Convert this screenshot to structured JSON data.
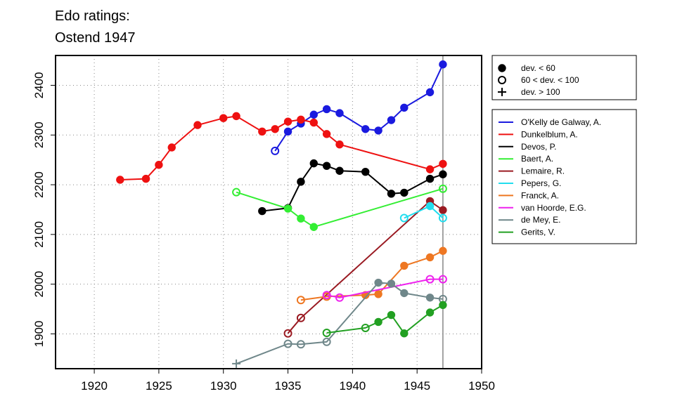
{
  "chart_data": {
    "type": "line",
    "title_lines": [
      "Edo ratings:",
      "Ostend 1947"
    ],
    "xlabel": "",
    "ylabel": "",
    "xlim": [
      1917,
      1950
    ],
    "ylim": [
      1830,
      2460
    ],
    "x_ticks": [
      1920,
      1925,
      1930,
      1935,
      1940,
      1945,
      1950
    ],
    "y_ticks": [
      1900,
      2000,
      2100,
      2200,
      2300,
      2400
    ],
    "grid": "dotted",
    "vertical_marker_x": 1947,
    "marker_legend": [
      {
        "symbol": "filled-circle",
        "label": "dev. < 60"
      },
      {
        "symbol": "open-circle",
        "label": "60 < dev. < 100"
      },
      {
        "symbol": "plus",
        "label": "dev. > 100"
      }
    ],
    "series": [
      {
        "name": "O'Kelly de Galway, A.",
        "color": "#1a1adf",
        "points": [
          {
            "x": 1934,
            "y": 2268,
            "m": "o"
          },
          {
            "x": 1935,
            "y": 2307,
            "m": "f"
          },
          {
            "x": 1936,
            "y": 2323,
            "m": "f"
          },
          {
            "x": 1937,
            "y": 2341,
            "m": "f"
          },
          {
            "x": 1938,
            "y": 2352,
            "m": "f"
          },
          {
            "x": 1939,
            "y": 2344,
            "m": "f"
          },
          {
            "x": 1941,
            "y": 2312,
            "m": "f"
          },
          {
            "x": 1942,
            "y": 2309,
            "m": "f"
          },
          {
            "x": 1943,
            "y": 2330,
            "m": "f"
          },
          {
            "x": 1944,
            "y": 2355,
            "m": "f"
          },
          {
            "x": 1946,
            "y": 2386,
            "m": "f"
          },
          {
            "x": 1947,
            "y": 2442,
            "m": "f"
          }
        ]
      },
      {
        "name": "Dunkelblum, A.",
        "color": "#ee1111",
        "points": [
          {
            "x": 1922,
            "y": 2210,
            "m": "f"
          },
          {
            "x": 1924,
            "y": 2212,
            "m": "f"
          },
          {
            "x": 1925,
            "y": 2240,
            "m": "f"
          },
          {
            "x": 1926,
            "y": 2275,
            "m": "f"
          },
          {
            "x": 1928,
            "y": 2320,
            "m": "f"
          },
          {
            "x": 1930,
            "y": 2334,
            "m": "f"
          },
          {
            "x": 1931,
            "y": 2338,
            "m": "f"
          },
          {
            "x": 1933,
            "y": 2307,
            "m": "f"
          },
          {
            "x": 1934,
            "y": 2312,
            "m": "f"
          },
          {
            "x": 1935,
            "y": 2327,
            "m": "f"
          },
          {
            "x": 1936,
            "y": 2331,
            "m": "f"
          },
          {
            "x": 1937,
            "y": 2325,
            "m": "f"
          },
          {
            "x": 1938,
            "y": 2302,
            "m": "f"
          },
          {
            "x": 1939,
            "y": 2281,
            "m": "f"
          },
          {
            "x": 1946,
            "y": 2231,
            "m": "f"
          },
          {
            "x": 1947,
            "y": 2242,
            "m": "f"
          }
        ]
      },
      {
        "name": "Devos, P.",
        "color": "#000000",
        "points": [
          {
            "x": 1933,
            "y": 2147,
            "m": "f"
          },
          {
            "x": 1935,
            "y": 2153,
            "m": "f"
          },
          {
            "x": 1936,
            "y": 2206,
            "m": "f"
          },
          {
            "x": 1937,
            "y": 2243,
            "m": "f"
          },
          {
            "x": 1938,
            "y": 2238,
            "m": "f"
          },
          {
            "x": 1939,
            "y": 2228,
            "m": "f"
          },
          {
            "x": 1941,
            "y": 2226,
            "m": "f"
          },
          {
            "x": 1943,
            "y": 2182,
            "m": "f"
          },
          {
            "x": 1944,
            "y": 2184,
            "m": "f"
          },
          {
            "x": 1946,
            "y": 2212,
            "m": "f"
          },
          {
            "x": 1947,
            "y": 2221,
            "m": "f"
          }
        ]
      },
      {
        "name": "Baert, A.",
        "color": "#33ee33",
        "points": [
          {
            "x": 1931,
            "y": 2185,
            "m": "o"
          },
          {
            "x": 1935,
            "y": 2152,
            "m": "f"
          },
          {
            "x": 1936,
            "y": 2132,
            "m": "f"
          },
          {
            "x": 1937,
            "y": 2115,
            "m": "f"
          },
          {
            "x": 1947,
            "y": 2192,
            "m": "o"
          }
        ]
      },
      {
        "name": "Lemaire, R.",
        "color": "#9a1a22",
        "points": [
          {
            "x": 1935,
            "y": 1901,
            "m": "o"
          },
          {
            "x": 1936,
            "y": 1932,
            "m": "o"
          },
          {
            "x": 1946,
            "y": 2167,
            "m": "f"
          },
          {
            "x": 1947,
            "y": 2149,
            "m": "f"
          }
        ]
      },
      {
        "name": "Pepers, G.",
        "color": "#22ddee",
        "points": [
          {
            "x": 1944,
            "y": 2133,
            "m": "o"
          },
          {
            "x": 1946,
            "y": 2157,
            "m": "f"
          },
          {
            "x": 1947,
            "y": 2133,
            "m": "o"
          }
        ]
      },
      {
        "name": "Franck, A.",
        "color": "#ee7722",
        "points": [
          {
            "x": 1936,
            "y": 1968,
            "m": "o"
          },
          {
            "x": 1938,
            "y": 1975,
            "m": "o"
          },
          {
            "x": 1941,
            "y": 1978,
            "m": "f"
          },
          {
            "x": 1942,
            "y": 1980,
            "m": "f"
          },
          {
            "x": 1944,
            "y": 2037,
            "m": "f"
          },
          {
            "x": 1946,
            "y": 2054,
            "m": "f"
          },
          {
            "x": 1947,
            "y": 2067,
            "m": "f"
          }
        ]
      },
      {
        "name": "van Hoorde, E.G.",
        "color": "#ee22ee",
        "points": [
          {
            "x": 1938,
            "y": 1978,
            "m": "o"
          },
          {
            "x": 1939,
            "y": 1973,
            "m": "o"
          },
          {
            "x": 1946,
            "y": 2010,
            "m": "o"
          },
          {
            "x": 1947,
            "y": 2010,
            "m": "o"
          }
        ]
      },
      {
        "name": "de Mey, E.",
        "color": "#6f878a",
        "points": [
          {
            "x": 1931,
            "y": 1840,
            "m": "p"
          },
          {
            "x": 1935,
            "y": 1880,
            "m": "o"
          },
          {
            "x": 1936,
            "y": 1879,
            "m": "o"
          },
          {
            "x": 1938,
            "y": 1884,
            "m": "o"
          },
          {
            "x": 1942,
            "y": 2003,
            "m": "f"
          },
          {
            "x": 1943,
            "y": 2001,
            "m": "f"
          },
          {
            "x": 1944,
            "y": 1982,
            "m": "f"
          },
          {
            "x": 1946,
            "y": 1973,
            "m": "f"
          },
          {
            "x": 1947,
            "y": 1970,
            "m": "o"
          }
        ]
      },
      {
        "name": "Gerits, V.",
        "color": "#22a022",
        "points": [
          {
            "x": 1938,
            "y": 1902,
            "m": "o"
          },
          {
            "x": 1941,
            "y": 1912,
            "m": "o"
          },
          {
            "x": 1942,
            "y": 1924,
            "m": "f"
          },
          {
            "x": 1943,
            "y": 1938,
            "m": "f"
          },
          {
            "x": 1944,
            "y": 1901,
            "m": "f"
          },
          {
            "x": 1946,
            "y": 1943,
            "m": "f"
          },
          {
            "x": 1947,
            "y": 1958,
            "m": "f"
          }
        ]
      }
    ]
  }
}
